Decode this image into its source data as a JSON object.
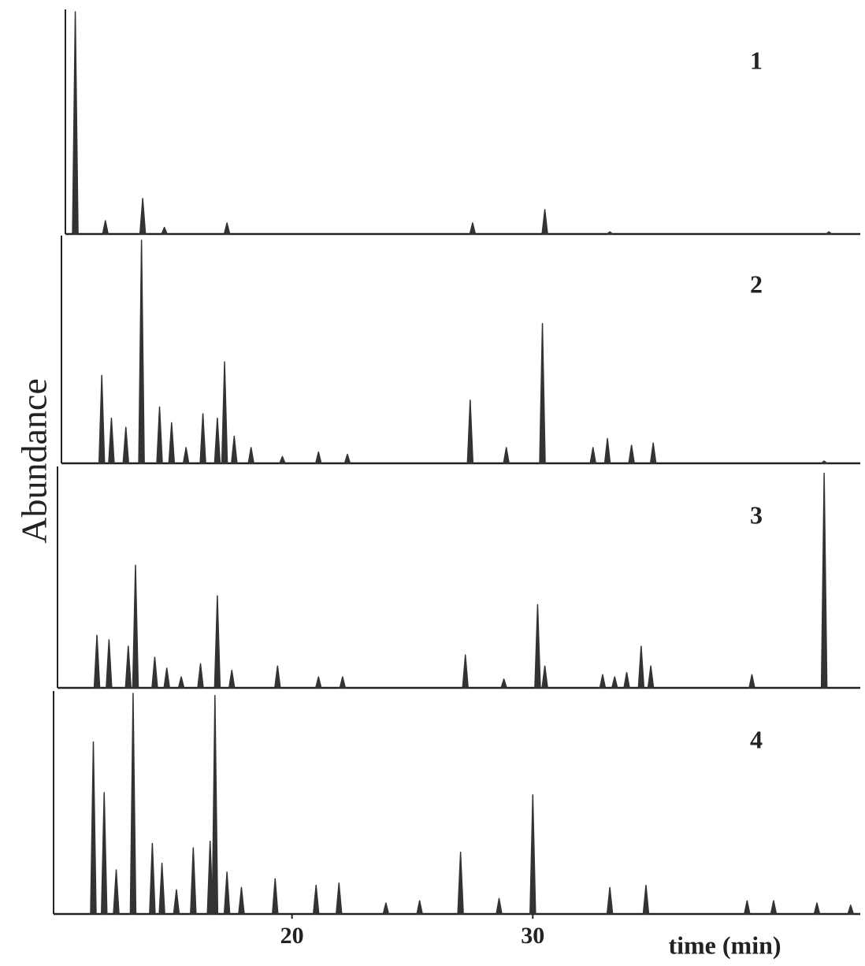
{
  "chart_data": {
    "type": "line",
    "y_label": "Abundance",
    "x_label": "time (min)",
    "xlim": [
      10,
      43.6
    ],
    "xticks": [
      20,
      30
    ],
    "ylim": [
      0,
      100
    ],
    "color": "#333333",
    "series": [
      {
        "name": "1",
        "x": [
          11.0,
          12.25,
          13.8,
          14.7,
          17.3,
          27.5,
          30.5,
          33.2,
          42.3
        ],
        "values": [
          100,
          6,
          16,
          3,
          5,
          5,
          11,
          1,
          1
        ]
      },
      {
        "name": "2",
        "x": [
          12.1,
          12.5,
          13.1,
          13.75,
          14.5,
          15.0,
          15.6,
          16.3,
          16.9,
          17.2,
          17.6,
          18.3,
          19.6,
          21.1,
          22.3,
          27.4,
          28.9,
          30.4,
          32.5,
          33.1,
          34.1,
          35.0,
          42.1
        ],
        "values": [
          39,
          20,
          16,
          99,
          25,
          18,
          7,
          22,
          20,
          45,
          12,
          7,
          3,
          5,
          4,
          28,
          7,
          62,
          7,
          11,
          8,
          9,
          1
        ]
      },
      {
        "name": "3",
        "x": [
          11.9,
          12.4,
          13.2,
          13.5,
          14.3,
          14.8,
          15.4,
          16.2,
          16.9,
          17.5,
          19.4,
          21.1,
          22.1,
          27.2,
          28.8,
          30.2,
          30.5,
          32.9,
          33.4,
          33.9,
          34.5,
          34.9,
          39.1,
          42.1
        ],
        "values": [
          24,
          22,
          19,
          56,
          14,
          9,
          5,
          11,
          42,
          8,
          10,
          5,
          5,
          15,
          4,
          38,
          10,
          6,
          5,
          7,
          19,
          10,
          6,
          98
        ]
      },
      {
        "name": "4",
        "x": [
          11.75,
          12.2,
          12.7,
          13.4,
          14.2,
          14.6,
          15.2,
          15.9,
          16.6,
          16.8,
          17.3,
          17.9,
          19.3,
          21.0,
          21.95,
          23.9,
          25.3,
          27.0,
          28.6,
          30.0,
          33.2,
          34.7,
          38.9,
          40.0,
          41.8,
          43.2
        ],
        "values": [
          78,
          55,
          20,
          100,
          32,
          23,
          11,
          30,
          33,
          99,
          19,
          12,
          16,
          13,
          14,
          5,
          6,
          28,
          7,
          54,
          12,
          13,
          6,
          6,
          5,
          4
        ]
      }
    ]
  }
}
